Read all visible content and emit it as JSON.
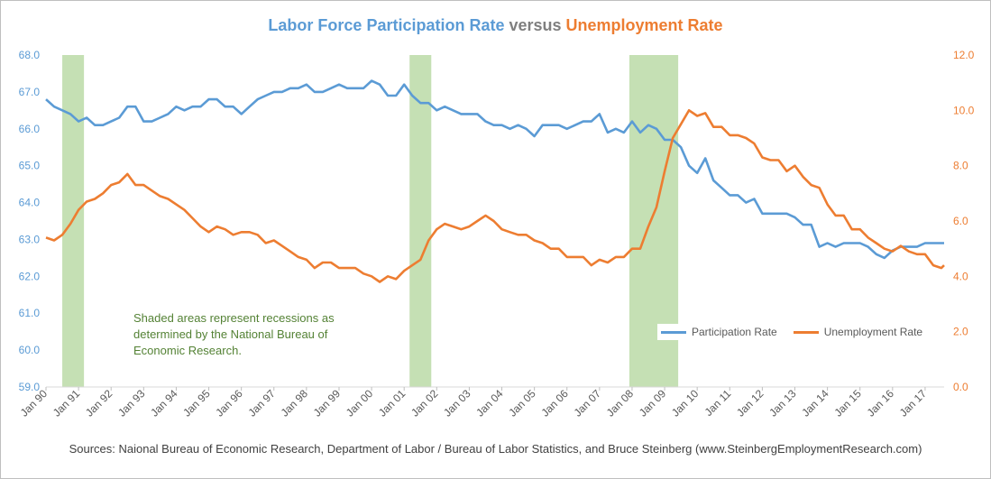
{
  "title": {
    "part1": "Labor Force Participation Rate",
    "part2": " versus ",
    "part3": "Unemployment Rate"
  },
  "note": {
    "line1": "Shaded areas represent recessions as",
    "line2": "determined by the National Bureau of",
    "line3": "Economic Research."
  },
  "source": "Sources: Naional Bureau of Economic Research, Department of Labor / Bureau of Labor Statistics, and Bruce Steinberg (www.SteinbergEmploymentResearch.com)",
  "colors": {
    "participation": "#5b9bd5",
    "unemployment": "#ed7d31",
    "recession": "#c5e0b4",
    "grid": "#d9d9d9"
  },
  "chart_data": {
    "type": "line",
    "x_start": "Jan 90",
    "x_end": "Aug 17",
    "x_tick_labels": [
      "Jan 90",
      "Jan 91",
      "Jan 92",
      "Jan 93",
      "Jan 94",
      "Jan 95",
      "Jan 96",
      "Jan 97",
      "Jan 98",
      "Jan 99",
      "Jan 00",
      "Jan 01",
      "Jan 02",
      "Jan 03",
      "Jan 04",
      "Jan 05",
      "Jan 06",
      "Jan 07",
      "Jan 08",
      "Jan 09",
      "Jan 10",
      "Jan 11",
      "Jan 12",
      "Jan 13",
      "Jan 14",
      "Jan 15",
      "Jan 16",
      "Jan 17"
    ],
    "y_left": {
      "min": 59.0,
      "max": 68.0,
      "ticks": [
        "59.0",
        "60.0",
        "61.0",
        "62.0",
        "63.0",
        "64.0",
        "65.0",
        "66.0",
        "67.0",
        "68.0"
      ]
    },
    "y_right": {
      "min": 0.0,
      "max": 12.0,
      "ticks": [
        "0.0",
        "2.0",
        "4.0",
        "6.0",
        "8.0",
        "10.0",
        "12.0"
      ]
    },
    "grid": false,
    "legend_position": "bottom-right",
    "recessions": [
      {
        "start": "Jul 90",
        "end": "Mar 91"
      },
      {
        "start": "Mar 01",
        "end": "Nov 01"
      },
      {
        "start": "Dec 07",
        "end": "Jun 09"
      }
    ],
    "series": [
      {
        "name": "Participation Rate",
        "axis": "left",
        "points": [
          [
            "Jan 90",
            66.8
          ],
          [
            "Apr 90",
            66.6
          ],
          [
            "Jul 90",
            66.5
          ],
          [
            "Oct 90",
            66.4
          ],
          [
            "Jan 91",
            66.2
          ],
          [
            "Apr 91",
            66.3
          ],
          [
            "Jul 91",
            66.1
          ],
          [
            "Oct 91",
            66.1
          ],
          [
            "Jan 92",
            66.2
          ],
          [
            "Apr 92",
            66.3
          ],
          [
            "Jul 92",
            66.6
          ],
          [
            "Oct 92",
            66.6
          ],
          [
            "Jan 93",
            66.2
          ],
          [
            "Apr 93",
            66.2
          ],
          [
            "Jul 93",
            66.3
          ],
          [
            "Oct 93",
            66.4
          ],
          [
            "Jan 94",
            66.6
          ],
          [
            "Apr 94",
            66.5
          ],
          [
            "Jul 94",
            66.6
          ],
          [
            "Oct 94",
            66.6
          ],
          [
            "Jan 95",
            66.8
          ],
          [
            "Apr 95",
            66.8
          ],
          [
            "Jul 95",
            66.6
          ],
          [
            "Oct 95",
            66.6
          ],
          [
            "Jan 96",
            66.4
          ],
          [
            "Apr 96",
            66.6
          ],
          [
            "Jul 96",
            66.8
          ],
          [
            "Oct 96",
            66.9
          ],
          [
            "Jan 97",
            67.0
          ],
          [
            "Apr 97",
            67.0
          ],
          [
            "Jul 97",
            67.1
          ],
          [
            "Oct 97",
            67.1
          ],
          [
            "Jan 98",
            67.2
          ],
          [
            "Apr 98",
            67.0
          ],
          [
            "Jul 98",
            67.0
          ],
          [
            "Oct 98",
            67.1
          ],
          [
            "Jan 99",
            67.2
          ],
          [
            "Apr 99",
            67.1
          ],
          [
            "Jul 99",
            67.1
          ],
          [
            "Oct 99",
            67.1
          ],
          [
            "Jan 00",
            67.3
          ],
          [
            "Apr 00",
            67.2
          ],
          [
            "Jul 00",
            66.9
          ],
          [
            "Oct 00",
            66.9
          ],
          [
            "Jan 01",
            67.2
          ],
          [
            "Apr 01",
            66.9
          ],
          [
            "Jul 01",
            66.7
          ],
          [
            "Oct 01",
            66.7
          ],
          [
            "Jan 02",
            66.5
          ],
          [
            "Apr 02",
            66.6
          ],
          [
            "Jul 02",
            66.5
          ],
          [
            "Oct 02",
            66.4
          ],
          [
            "Jan 03",
            66.4
          ],
          [
            "Apr 03",
            66.4
          ],
          [
            "Jul 03",
            66.2
          ],
          [
            "Oct 03",
            66.1
          ],
          [
            "Jan 04",
            66.1
          ],
          [
            "Apr 04",
            66.0
          ],
          [
            "Jul 04",
            66.1
          ],
          [
            "Oct 04",
            66.0
          ],
          [
            "Jan 05",
            65.8
          ],
          [
            "Apr 05",
            66.1
          ],
          [
            "Jul 05",
            66.1
          ],
          [
            "Oct 05",
            66.1
          ],
          [
            "Jan 06",
            66.0
          ],
          [
            "Apr 06",
            66.1
          ],
          [
            "Jul 06",
            66.2
          ],
          [
            "Oct 06",
            66.2
          ],
          [
            "Jan 07",
            66.4
          ],
          [
            "Apr 07",
            65.9
          ],
          [
            "Jul 07",
            66.0
          ],
          [
            "Oct 07",
            65.9
          ],
          [
            "Jan 08",
            66.2
          ],
          [
            "Apr 08",
            65.9
          ],
          [
            "Jul 08",
            66.1
          ],
          [
            "Oct 08",
            66.0
          ],
          [
            "Jan 09",
            65.7
          ],
          [
            "Apr 09",
            65.7
          ],
          [
            "Jul 09",
            65.5
          ],
          [
            "Oct 09",
            65.0
          ],
          [
            "Jan 10",
            64.8
          ],
          [
            "Apr 10",
            65.2
          ],
          [
            "Jul 10",
            64.6
          ],
          [
            "Oct 10",
            64.4
          ],
          [
            "Jan 11",
            64.2
          ],
          [
            "Apr 11",
            64.2
          ],
          [
            "Jul 11",
            64.0
          ],
          [
            "Oct 11",
            64.1
          ],
          [
            "Jan 12",
            63.7
          ],
          [
            "Apr 12",
            63.7
          ],
          [
            "Jul 12",
            63.7
          ],
          [
            "Oct 12",
            63.7
          ],
          [
            "Jan 13",
            63.6
          ],
          [
            "Apr 13",
            63.4
          ],
          [
            "Jul 13",
            63.4
          ],
          [
            "Oct 13",
            62.8
          ],
          [
            "Jan 14",
            62.9
          ],
          [
            "Apr 14",
            62.8
          ],
          [
            "Jul 14",
            62.9
          ],
          [
            "Oct 14",
            62.9
          ],
          [
            "Jan 15",
            62.9
          ],
          [
            "Apr 15",
            62.8
          ],
          [
            "Jul 15",
            62.6
          ],
          [
            "Oct 15",
            62.5
          ],
          [
            "Jan 16",
            62.7
          ],
          [
            "Apr 16",
            62.8
          ],
          [
            "Jul 16",
            62.8
          ],
          [
            "Oct 16",
            62.8
          ],
          [
            "Jan 17",
            62.9
          ],
          [
            "Apr 17",
            62.9
          ],
          [
            "Jul 17",
            62.9
          ],
          [
            "Aug 17",
            62.9
          ]
        ]
      },
      {
        "name": "Unemployment Rate",
        "axis": "right",
        "points": [
          [
            "Jan 90",
            5.4
          ],
          [
            "Apr 90",
            5.3
          ],
          [
            "Jul 90",
            5.5
          ],
          [
            "Oct 90",
            5.9
          ],
          [
            "Jan 91",
            6.4
          ],
          [
            "Apr 91",
            6.7
          ],
          [
            "Jul 91",
            6.8
          ],
          [
            "Oct 91",
            7.0
          ],
          [
            "Jan 92",
            7.3
          ],
          [
            "Apr 92",
            7.4
          ],
          [
            "Jul 92",
            7.7
          ],
          [
            "Oct 92",
            7.3
          ],
          [
            "Jan 93",
            7.3
          ],
          [
            "Apr 93",
            7.1
          ],
          [
            "Jul 93",
            6.9
          ],
          [
            "Oct 93",
            6.8
          ],
          [
            "Jan 94",
            6.6
          ],
          [
            "Apr 94",
            6.4
          ],
          [
            "Jul 94",
            6.1
          ],
          [
            "Oct 94",
            5.8
          ],
          [
            "Jan 95",
            5.6
          ],
          [
            "Apr 95",
            5.8
          ],
          [
            "Jul 95",
            5.7
          ],
          [
            "Oct 95",
            5.5
          ],
          [
            "Jan 96",
            5.6
          ],
          [
            "Apr 96",
            5.6
          ],
          [
            "Jul 96",
            5.5
          ],
          [
            "Oct 96",
            5.2
          ],
          [
            "Jan 97",
            5.3
          ],
          [
            "Apr 97",
            5.1
          ],
          [
            "Jul 97",
            4.9
          ],
          [
            "Oct 97",
            4.7
          ],
          [
            "Jan 98",
            4.6
          ],
          [
            "Apr 98",
            4.3
          ],
          [
            "Jul 98",
            4.5
          ],
          [
            "Oct 98",
            4.5
          ],
          [
            "Jan 99",
            4.3
          ],
          [
            "Apr 99",
            4.3
          ],
          [
            "Jul 99",
            4.3
          ],
          [
            "Oct 99",
            4.1
          ],
          [
            "Jan 00",
            4.0
          ],
          [
            "Apr 00",
            3.8
          ],
          [
            "Jul 00",
            4.0
          ],
          [
            "Oct 00",
            3.9
          ],
          [
            "Jan 01",
            4.2
          ],
          [
            "Apr 01",
            4.4
          ],
          [
            "Jul 01",
            4.6
          ],
          [
            "Oct 01",
            5.3
          ],
          [
            "Jan 02",
            5.7
          ],
          [
            "Apr 02",
            5.9
          ],
          [
            "Jul 02",
            5.8
          ],
          [
            "Oct 02",
            5.7
          ],
          [
            "Jan 03",
            5.8
          ],
          [
            "Apr 03",
            6.0
          ],
          [
            "Jul 03",
            6.2
          ],
          [
            "Oct 03",
            6.0
          ],
          [
            "Jan 04",
            5.7
          ],
          [
            "Apr 04",
            5.6
          ],
          [
            "Jul 04",
            5.5
          ],
          [
            "Oct 04",
            5.5
          ],
          [
            "Jan 05",
            5.3
          ],
          [
            "Apr 05",
            5.2
          ],
          [
            "Jul 05",
            5.0
          ],
          [
            "Oct 05",
            5.0
          ],
          [
            "Jan 06",
            4.7
          ],
          [
            "Apr 06",
            4.7
          ],
          [
            "Jul 06",
            4.7
          ],
          [
            "Oct 06",
            4.4
          ],
          [
            "Jan 07",
            4.6
          ],
          [
            "Apr 07",
            4.5
          ],
          [
            "Jul 07",
            4.7
          ],
          [
            "Oct 07",
            4.7
          ],
          [
            "Jan 08",
            5.0
          ],
          [
            "Apr 08",
            5.0
          ],
          [
            "Jul 08",
            5.8
          ],
          [
            "Oct 08",
            6.5
          ],
          [
            "Jan 09",
            7.8
          ],
          [
            "Apr 09",
            9.0
          ],
          [
            "Jul 09",
            9.5
          ],
          [
            "Oct 09",
            10.0
          ],
          [
            "Jan 10",
            9.8
          ],
          [
            "Apr 10",
            9.9
          ],
          [
            "Jul 10",
            9.4
          ],
          [
            "Oct 10",
            9.4
          ],
          [
            "Jan 11",
            9.1
          ],
          [
            "Apr 11",
            9.1
          ],
          [
            "Jul 11",
            9.0
          ],
          [
            "Oct 11",
            8.8
          ],
          [
            "Jan 12",
            8.3
          ],
          [
            "Apr 12",
            8.2
          ],
          [
            "Jul 12",
            8.2
          ],
          [
            "Oct 12",
            7.8
          ],
          [
            "Jan 13",
            8.0
          ],
          [
            "Apr 13",
            7.6
          ],
          [
            "Jul 13",
            7.3
          ],
          [
            "Oct 13",
            7.2
          ],
          [
            "Jan 14",
            6.6
          ],
          [
            "Apr 14",
            6.2
          ],
          [
            "Jul 14",
            6.2
          ],
          [
            "Oct 14",
            5.7
          ],
          [
            "Jan 15",
            5.7
          ],
          [
            "Apr 15",
            5.4
          ],
          [
            "Jul 15",
            5.2
          ],
          [
            "Oct 15",
            5.0
          ],
          [
            "Jan 16",
            4.9
          ],
          [
            "Apr 16",
            5.1
          ],
          [
            "Jul 16",
            4.9
          ],
          [
            "Oct 16",
            4.8
          ],
          [
            "Jan 17",
            4.8
          ],
          [
            "Apr 17",
            4.4
          ],
          [
            "Jul 17",
            4.3
          ],
          [
            "Aug 17",
            4.4
          ]
        ]
      }
    ]
  }
}
